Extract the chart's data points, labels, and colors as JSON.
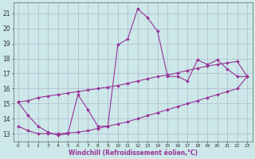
{
  "xlabel": "Windchill (Refroidissement éolien,°C)",
  "x_main": [
    0,
    1,
    2,
    3,
    4,
    5,
    6,
    7,
    8,
    9,
    10,
    11,
    12,
    13,
    14,
    15,
    16,
    17,
    18,
    19,
    20,
    21,
    22,
    23
  ],
  "y_main": [
    15.1,
    14.2,
    13.5,
    13.1,
    12.9,
    13.0,
    15.6,
    14.6,
    13.5,
    13.5,
    18.9,
    19.3,
    21.3,
    20.7,
    19.8,
    16.8,
    16.8,
    16.5,
    17.9,
    17.6,
    17.9,
    17.3,
    16.8,
    16.8
  ],
  "x_lower": [
    0,
    1,
    2,
    3,
    4,
    5,
    6,
    7,
    8,
    9,
    10,
    11,
    12,
    13,
    14,
    15,
    16,
    17,
    18,
    19,
    20,
    21,
    22,
    23
  ],
  "y_lower": [
    13.5,
    13.2,
    13.0,
    13.0,
    13.0,
    13.05,
    13.1,
    13.2,
    13.35,
    13.5,
    13.65,
    13.8,
    14.0,
    14.2,
    14.4,
    14.6,
    14.8,
    15.0,
    15.2,
    15.4,
    15.6,
    15.8,
    16.0,
    16.8
  ],
  "x_upper": [
    0,
    1,
    2,
    3,
    4,
    5,
    6,
    7,
    8,
    9,
    10,
    11,
    12,
    13,
    14,
    15,
    16,
    17,
    18,
    19,
    20,
    21,
    22,
    23
  ],
  "y_upper": [
    15.1,
    15.2,
    15.4,
    15.5,
    15.6,
    15.7,
    15.8,
    15.9,
    16.0,
    16.1,
    16.2,
    16.35,
    16.5,
    16.65,
    16.8,
    16.9,
    17.05,
    17.2,
    17.35,
    17.5,
    17.6,
    17.7,
    17.8,
    16.8
  ],
  "line_color": "#993399",
  "bg_color": "#cce8e8",
  "grid_color": "#aaaacc",
  "xlim_min": -0.5,
  "xlim_max": 23.5,
  "ylim_min": 12.5,
  "ylim_max": 21.7,
  "yticks": [
    13,
    14,
    15,
    16,
    17,
    18,
    19,
    20,
    21
  ],
  "xticks": [
    0,
    1,
    2,
    3,
    4,
    5,
    6,
    7,
    8,
    9,
    10,
    11,
    12,
    13,
    14,
    15,
    16,
    17,
    18,
    19,
    20,
    21,
    22,
    23
  ]
}
